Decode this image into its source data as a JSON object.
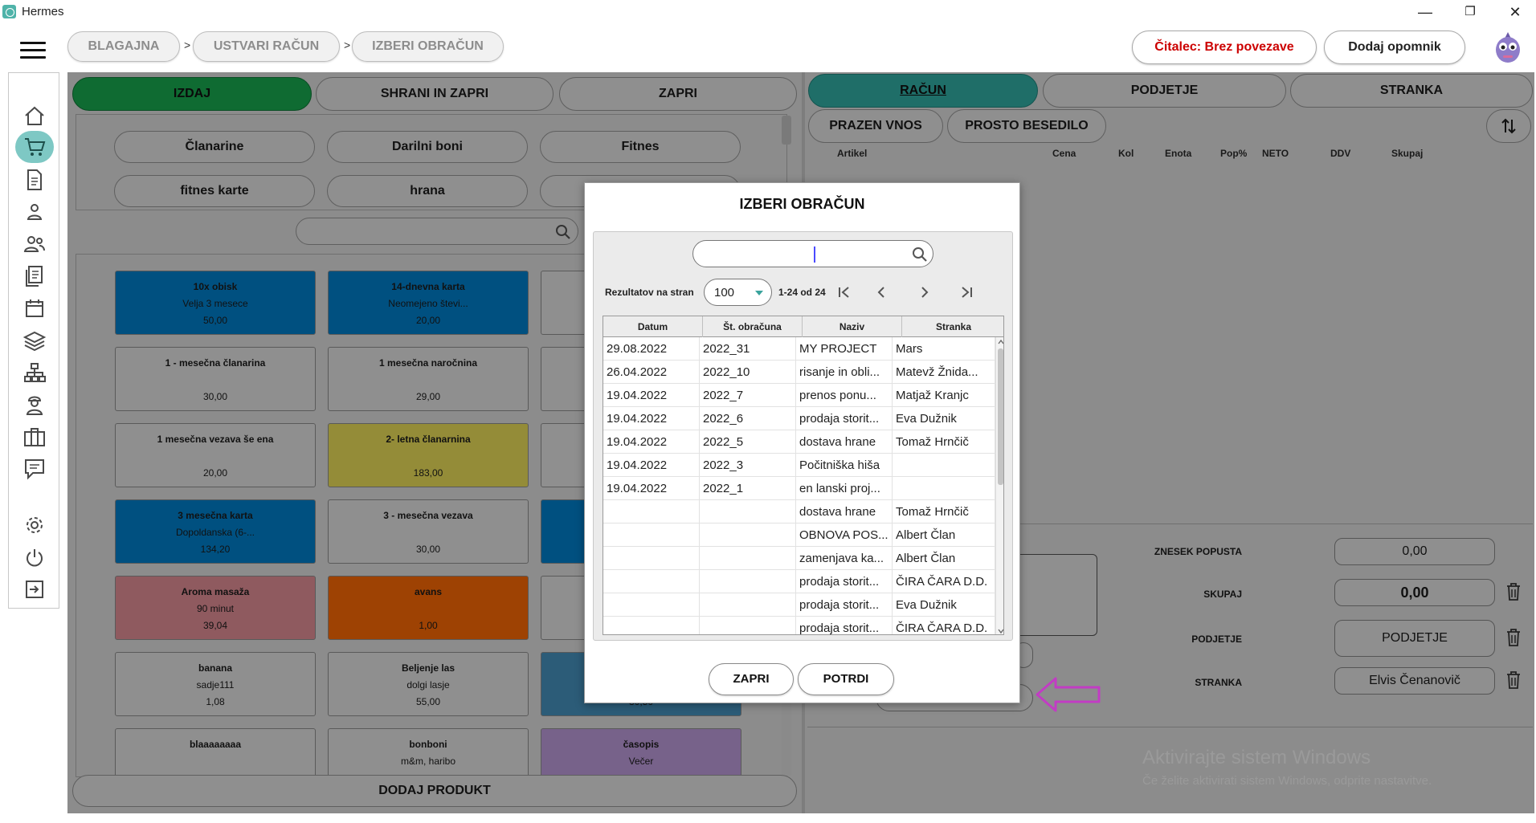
{
  "window": {
    "title": "Hermes",
    "minimize": "—",
    "maximize": "❐",
    "close": "✕"
  },
  "breadcrumb": {
    "items": [
      "BLAGAJNA",
      "USTVARI RAČUN",
      "IZBERI OBRAČUN"
    ],
    "separator": ">"
  },
  "header": {
    "reader_status": "Čitalec: Brez povezave",
    "add_reminder": "Dodaj opomnik",
    "reader_status_color": "#cc0000"
  },
  "left": {
    "actions": {
      "issue": "IZDAJ",
      "save_close": "SHRANI IN ZAPRI",
      "close": "ZAPRI"
    },
    "categories": [
      "Članarine",
      "Darilni boni",
      "Fitnes",
      "fitnes karte",
      "hrana",
      ""
    ],
    "add_product": "DODAJ PRODUKT",
    "products": [
      {
        "name": "10x obisk",
        "sub": "Velja 3 mesece",
        "price": "50,00",
        "color": "blue"
      },
      {
        "name": "14-dnevna karta",
        "sub": "Neomejeno števi...",
        "price": "20,00",
        "color": "blue"
      },
      {
        "name": "",
        "sub": "",
        "price": "",
        "color": "grey"
      },
      {
        "name": "1 - mesečna članarina",
        "sub": "",
        "price": "30,00",
        "color": "grey"
      },
      {
        "name": "1 mesečna naročnina",
        "sub": "",
        "price": "29,00",
        "color": "grey"
      },
      {
        "name": "",
        "sub": "",
        "price": "",
        "color": "grey"
      },
      {
        "name": "1 mesečna vezava še ena",
        "sub": "",
        "price": "20,00",
        "color": "grey"
      },
      {
        "name": "2- letna članarnina",
        "sub": "",
        "price": "183,00",
        "color": "yellow"
      },
      {
        "name": "",
        "sub": "",
        "price": "",
        "color": "grey"
      },
      {
        "name": "3 mesečna karta",
        "sub": "Dopoldanska (6-...",
        "price": "134,20",
        "color": "blue"
      },
      {
        "name": "3 - mesečna vezava",
        "sub": "",
        "price": "30,00",
        "color": "grey"
      },
      {
        "name": "",
        "sub": "",
        "price": "",
        "color": "blue"
      },
      {
        "name": "Aroma masaža",
        "sub": "90 minut",
        "price": "39,04",
        "color": "pink"
      },
      {
        "name": "avans",
        "sub": "",
        "price": "1,00",
        "color": "orange"
      },
      {
        "name": "",
        "sub": "",
        "price": "",
        "color": "grey"
      },
      {
        "name": "banana",
        "sub": "sadje111",
        "price": "1,08",
        "color": "grey"
      },
      {
        "name": "Beljenje las",
        "sub": "dolgi lasje",
        "price": "55,00",
        "color": "grey"
      },
      {
        "name": "",
        "sub": "",
        "price": "30,50",
        "color": "lightblue"
      },
      {
        "name": "blaaaaaaaa",
        "sub": "",
        "price": "",
        "color": "grey"
      },
      {
        "name": "bonboni",
        "sub": "m&m, haribo",
        "price": "",
        "color": "grey"
      },
      {
        "name": "časopis",
        "sub": "Večer",
        "price": "",
        "color": "purple"
      }
    ]
  },
  "right": {
    "tabs": {
      "invoice": "RAČUN",
      "split": "PODJETJE",
      "customer": "STRANKA"
    },
    "buttons": {
      "empty_entry": "PRAZEN VNOS",
      "free_text": "PROSTO BESEDILO"
    },
    "columns": [
      "Artikel",
      "Cena",
      "Kol",
      "Enota",
      "Pop%",
      "NETO",
      "DDV",
      "Skupaj"
    ],
    "summary": {
      "discount_label": "ZNESEK POPUSTA",
      "discount_value": "0,00",
      "total_label": "SKUPAJ",
      "total_value": "0,00",
      "company_label": "PODJETJE",
      "company_value": "PODJETJE",
      "customer_label": "STRANKA",
      "customer_value": "Elvis Čenanovič"
    }
  },
  "watermark": {
    "line1": "Aktivirajte sistem Windows",
    "line2": "Če želite aktivirati sistem Windows, odprite nastavitve."
  },
  "modal": {
    "title": "IZBERI OBRAČUN",
    "search_value": "",
    "rows_per_page_label": "Rezultatov na stran",
    "rows_per_page": "100",
    "range": "1-24 od 24",
    "columns": [
      "Datum",
      "Št. obračuna",
      "Naziv",
      "Stranka"
    ],
    "rows": [
      [
        "29.08.2022",
        "2022_31",
        "MY PROJECT",
        "Mars"
      ],
      [
        "26.04.2022",
        "2022_10",
        "risanje in obli...",
        "Matevž Žnida..."
      ],
      [
        "19.04.2022",
        "2022_7",
        "prenos ponu...",
        "Matjaž Kranjc"
      ],
      [
        "19.04.2022",
        "2022_6",
        "prodaja storit...",
        "Eva Dužnik"
      ],
      [
        "19.04.2022",
        "2022_5",
        "dostava hrane",
        "Tomaž Hrnčič"
      ],
      [
        "19.04.2022",
        "2022_3",
        "Počitniška hiša",
        ""
      ],
      [
        "19.04.2022",
        "2022_1",
        "en lanski proj...",
        ""
      ],
      [
        "",
        "",
        "dostava hrane",
        "Tomaž Hrnčič"
      ],
      [
        "",
        "",
        "OBNOVA POS...",
        "Albert Član"
      ],
      [
        "",
        "",
        "zamenjava ka...",
        "Albert Član"
      ],
      [
        "",
        "",
        "prodaja storit...",
        "ČIRA ČARA D.D."
      ],
      [
        "",
        "",
        "prodaja storit...",
        "Eva Dužnik"
      ],
      [
        "",
        "",
        "prodaja storit...",
        "ČIRA ČARA D.D."
      ]
    ],
    "cancel": "ZAPRI",
    "confirm": "POTRDI"
  }
}
